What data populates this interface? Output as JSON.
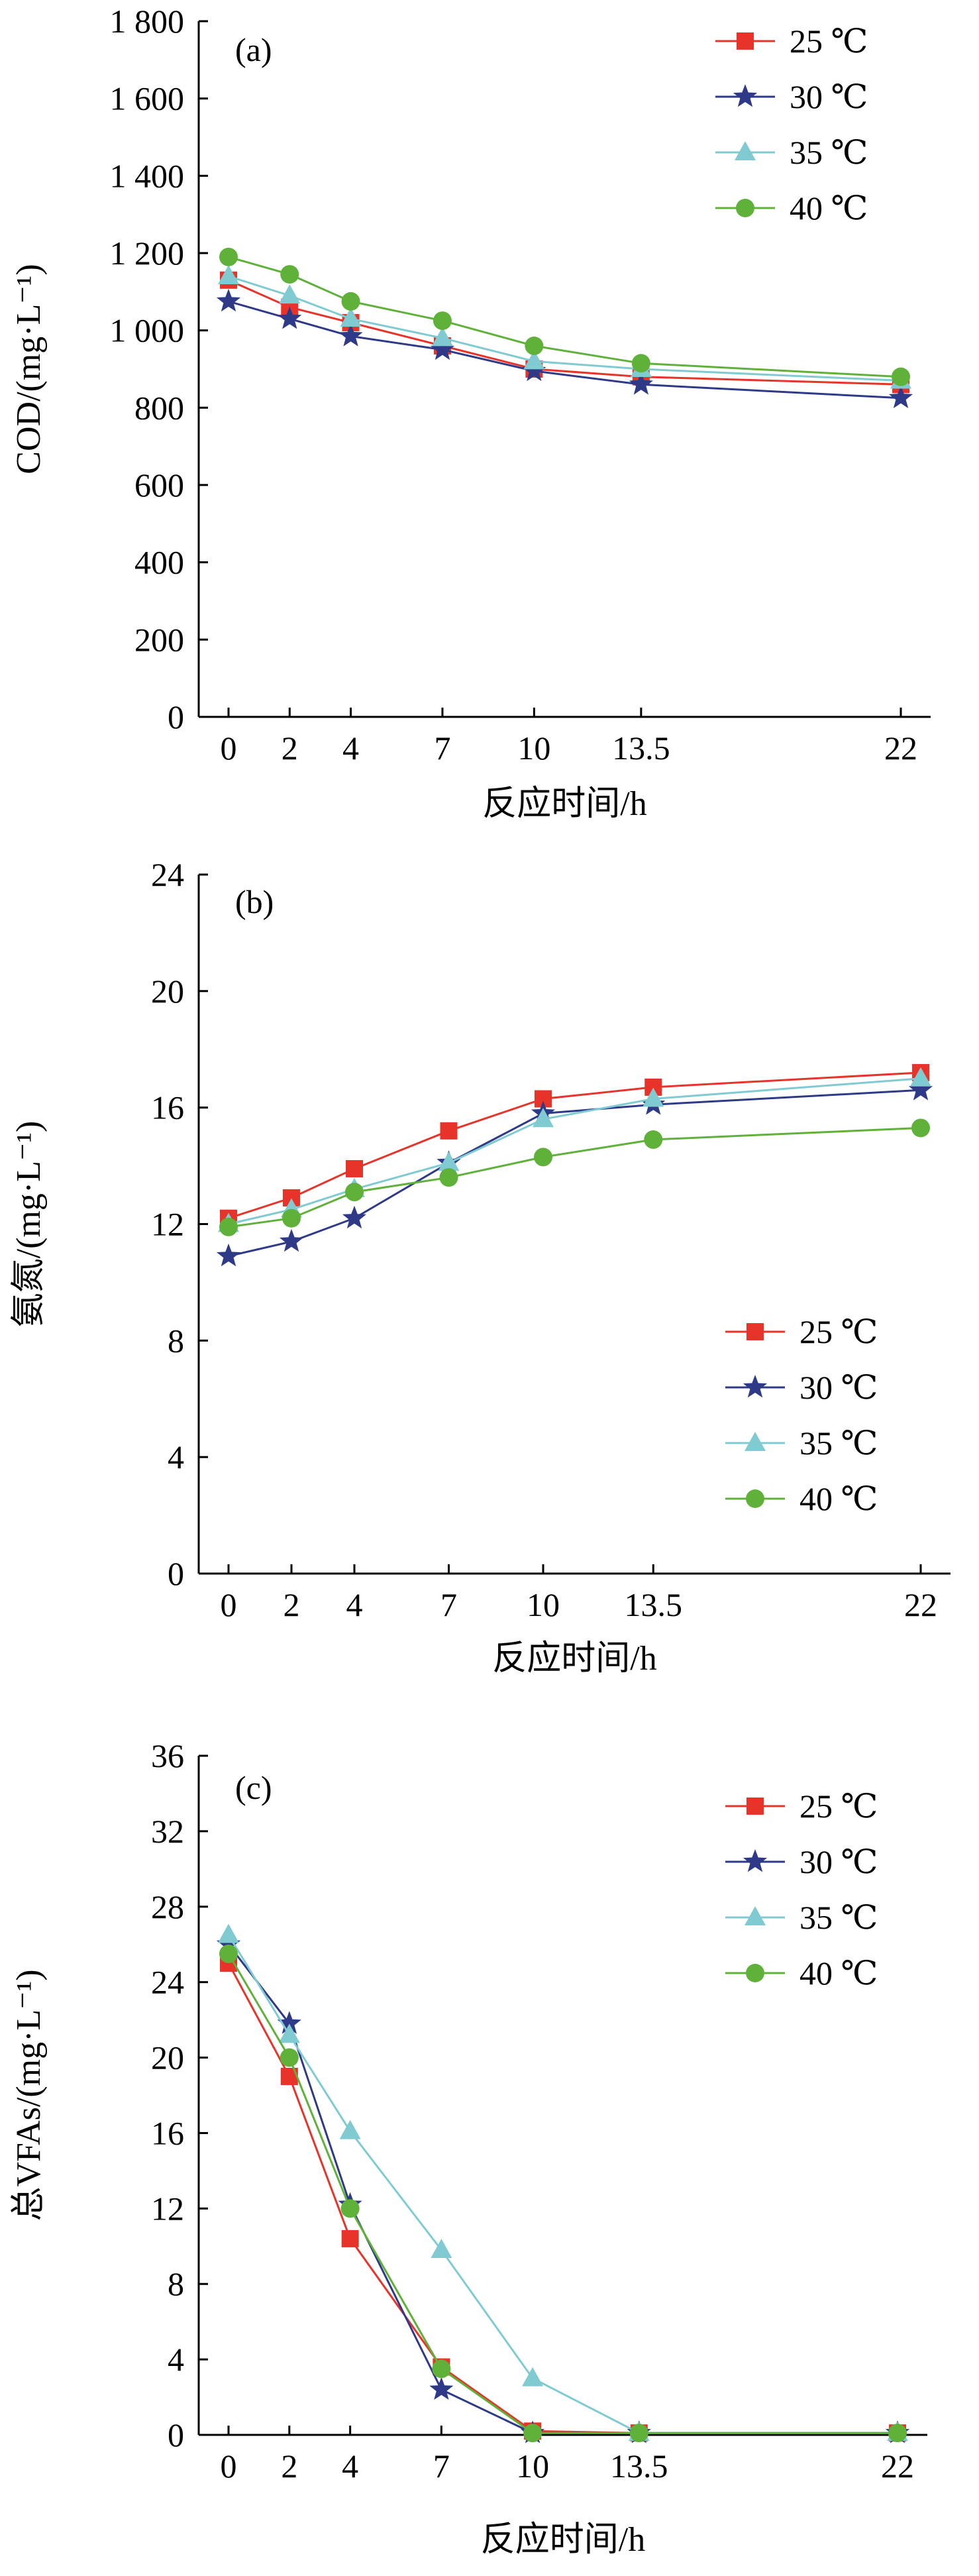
{
  "chart_data": [
    {
      "type": "line",
      "panel_label": "(a)",
      "x": [
        0,
        2,
        4,
        7,
        10,
        13.5,
        22
      ],
      "x_tick_labels": [
        "0",
        "2",
        "4",
        "7",
        "10",
        "13.5",
        "22"
      ],
      "xlabel": "反应时间/h",
      "ylabel": "COD/(mg·L⁻¹)",
      "ylim": [
        0,
        1800
      ],
      "y_ticks": [
        0,
        200,
        400,
        600,
        800,
        1000,
        1200,
        1400,
        1600,
        1800
      ],
      "y_tick_labels": [
        "0",
        "200",
        "400",
        "600",
        "800",
        "1 000",
        "1 200",
        "1 400",
        "1 600",
        "1 800"
      ],
      "legend_position": "top-right",
      "series": [
        {
          "name": "25 ℃",
          "marker": "square",
          "color": "#e8332a",
          "values": [
            1130,
            1060,
            1020,
            960,
            900,
            880,
            860
          ]
        },
        {
          "name": "30 ℃",
          "marker": "star",
          "color": "#2e3a87",
          "values": [
            1075,
            1030,
            985,
            950,
            895,
            860,
            825
          ]
        },
        {
          "name": "35 ℃",
          "marker": "triangle",
          "color": "#7fcbd1",
          "values": [
            1140,
            1090,
            1030,
            980,
            920,
            900,
            870
          ]
        },
        {
          "name": "40 ℃",
          "marker": "circle",
          "color": "#5fb13a",
          "values": [
            1190,
            1145,
            1075,
            1025,
            960,
            915,
            880
          ]
        }
      ]
    },
    {
      "type": "line",
      "panel_label": "(b)",
      "x": [
        0,
        2,
        4,
        7,
        10,
        13.5,
        22
      ],
      "x_tick_labels": [
        "0",
        "2",
        "4",
        "7",
        "10",
        "13.5",
        "22"
      ],
      "xlabel": "反应时间/h",
      "ylabel": "氨氮/(mg·L⁻¹)",
      "ylim": [
        0,
        24
      ],
      "y_ticks": [
        0,
        4,
        8,
        12,
        16,
        20,
        24
      ],
      "y_tick_labels": [
        "0",
        "4",
        "8",
        "12",
        "16",
        "20",
        "24"
      ],
      "legend_position": "bottom-right",
      "series": [
        {
          "name": "25 ℃",
          "marker": "square",
          "color": "#e8332a",
          "values": [
            12.2,
            12.9,
            13.9,
            15.2,
            16.3,
            16.7,
            17.2
          ]
        },
        {
          "name": "30 ℃",
          "marker": "star",
          "color": "#2e3a87",
          "values": [
            10.9,
            11.4,
            12.2,
            14.1,
            15.8,
            16.1,
            16.6
          ]
        },
        {
          "name": "35 ℃",
          "marker": "triangle",
          "color": "#7fcbd1",
          "values": [
            12.0,
            12.5,
            13.2,
            14.1,
            15.6,
            16.3,
            17.0
          ]
        },
        {
          "name": "40 ℃",
          "marker": "circle",
          "color": "#5fb13a",
          "values": [
            11.9,
            12.2,
            13.1,
            13.6,
            14.3,
            14.9,
            15.3
          ]
        }
      ]
    },
    {
      "type": "line",
      "panel_label": "(c)",
      "x": [
        0,
        2,
        4,
        7,
        10,
        13.5,
        22
      ],
      "x_tick_labels": [
        "0",
        "2",
        "4",
        "7",
        "10",
        "13.5",
        "22"
      ],
      "xlabel": "反应时间/h",
      "ylabel": "总VFAs/(mg·L⁻¹)",
      "ylim": [
        0,
        36
      ],
      "y_ticks": [
        0,
        4,
        8,
        12,
        16,
        20,
        24,
        28,
        32,
        36
      ],
      "y_tick_labels": [
        "0",
        "4",
        "8",
        "12",
        "16",
        "20",
        "24",
        "28",
        "32",
        "36"
      ],
      "legend_position": "top-right",
      "series": [
        {
          "name": "25 ℃",
          "marker": "square",
          "color": "#e8332a",
          "values": [
            25.0,
            19.0,
            10.4,
            3.6,
            0.2,
            0.1,
            0.1
          ]
        },
        {
          "name": "30 ℃",
          "marker": "star",
          "color": "#2e3a87",
          "values": [
            26.0,
            21.8,
            12.2,
            2.4,
            0.1,
            0.1,
            0.1
          ]
        },
        {
          "name": "35 ℃",
          "marker": "triangle",
          "color": "#7fcbd1",
          "values": [
            26.5,
            21.2,
            16.1,
            9.8,
            3.0,
            0.1,
            0.1
          ]
        },
        {
          "name": "40 ℃",
          "marker": "circle",
          "color": "#5fb13a",
          "values": [
            25.5,
            20.0,
            12.0,
            3.5,
            0.1,
            0.1,
            0.1
          ]
        }
      ]
    }
  ]
}
